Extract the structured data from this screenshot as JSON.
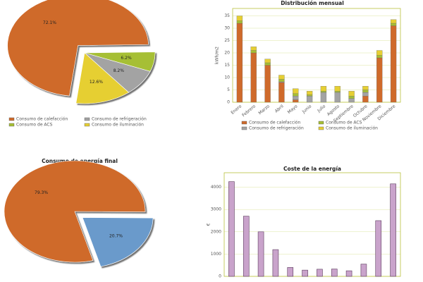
{
  "chart_data": [
    {
      "type": "pie",
      "categories": [
        "Consumo de calefacción",
        "Consumo de ACS",
        "Consumo de refrigeración",
        "Consumo de iluminación"
      ],
      "values": [
        72.1,
        6.2,
        8.2,
        12.6
      ],
      "value_labels": [
        "72.1%",
        "6.2%",
        "8.2%",
        "12.6%"
      ],
      "colors": [
        "#cf6a2b",
        "#a6bf34",
        "#a3a3a3",
        "#e6cf33"
      ]
    },
    {
      "type": "bar",
      "title": "Distribución mensual",
      "ylabel": "kWh/m2",
      "categories": [
        "Enero",
        "Febrero",
        "Marzo",
        "Abril",
        "Mayo",
        "Junio",
        "Julio",
        "Agosto",
        "Septiembre",
        "Octubre",
        "Noviembre",
        "Diciembre"
      ],
      "series": [
        {
          "name": "Consumo de calefacción",
          "color": "#cf6a2b",
          "values": [
            32,
            20,
            15,
            8,
            1,
            0,
            0,
            0,
            0,
            2.5,
            18,
            31
          ]
        },
        {
          "name": "Consumo de refrigeración",
          "color": "#a3a3a3",
          "values": [
            0,
            0,
            0,
            0.3,
            1.5,
            2.5,
            4,
            4,
            1.5,
            1.5,
            0,
            0
          ]
        },
        {
          "name": "Consumo de ACS",
          "color": "#a6bf34",
          "values": [
            1,
            1,
            1,
            1,
            1,
            0.5,
            0.5,
            0.5,
            1,
            1,
            1,
            1
          ]
        },
        {
          "name": "Consumo de iluminación",
          "color": "#e6cf33",
          "values": [
            2,
            1.5,
            1.5,
            1.7,
            2,
            1.5,
            2,
            2,
            2,
            1.5,
            2,
            1.5
          ]
        }
      ],
      "ylim": [
        0,
        38
      ],
      "yticks": [
        0,
        5,
        10,
        15,
        20,
        25,
        30,
        35
      ],
      "grid": true
    },
    {
      "type": "pie",
      "title": "Consumo de energía final",
      "values": [
        79.3,
        20.7
      ],
      "value_labels": [
        "79.3%",
        "20.7%"
      ],
      "colors": [
        "#cf6a2b",
        "#6b9acb"
      ]
    },
    {
      "type": "bar",
      "title": "Coste de la energía",
      "ylabel": "€",
      "categories": [
        null,
        null,
        null,
        null,
        null,
        null,
        null,
        null,
        null,
        null,
        null,
        null
      ],
      "values": [
        4250,
        2700,
        2000,
        1200,
        400,
        280,
        320,
        330,
        250,
        550,
        2500,
        4150
      ],
      "color": "#c9a3cb",
      "ylim": [
        0,
        4650
      ],
      "yticks": [
        0,
        1000,
        2000,
        3000,
        4000
      ],
      "grid": true
    }
  ]
}
